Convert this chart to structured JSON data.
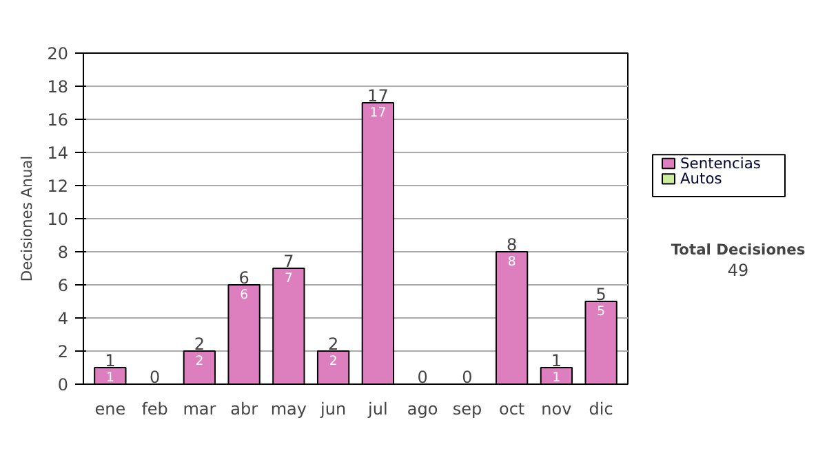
{
  "chart_data": {
    "type": "bar",
    "stacked": true,
    "ylabel": "Decisiones Anual",
    "categories": [
      "ene",
      "feb",
      "mar",
      "abr",
      "may",
      "jun",
      "jul",
      "ago",
      "sep",
      "oct",
      "nov",
      "dic"
    ],
    "series": [
      {
        "name": "Sentencias",
        "color": "#dd7fbf",
        "values": [
          1,
          0,
          2,
          6,
          7,
          2,
          17,
          0,
          0,
          8,
          1,
          5
        ],
        "value_labels": [
          "1",
          null,
          "2",
          "6",
          "7",
          "2",
          "17",
          null,
          null,
          "8",
          "1",
          "5"
        ]
      },
      {
        "name": "Autos",
        "color": "#ccee99",
        "values": [
          0,
          0,
          0,
          0,
          0,
          0,
          0,
          0,
          0,
          0,
          0,
          0
        ]
      }
    ],
    "totals": [
      "1",
      "0",
      "2",
      "6",
      "7",
      "2",
      "17",
      "0",
      "0",
      "8",
      "1",
      "5"
    ],
    "ylim": [
      0,
      20
    ],
    "yticks": [
      0,
      2,
      4,
      6,
      8,
      10,
      12,
      14,
      16,
      18,
      20
    ],
    "grid": "y",
    "legend": "right",
    "annotations": [
      "Total Decisiones",
      "49"
    ]
  }
}
